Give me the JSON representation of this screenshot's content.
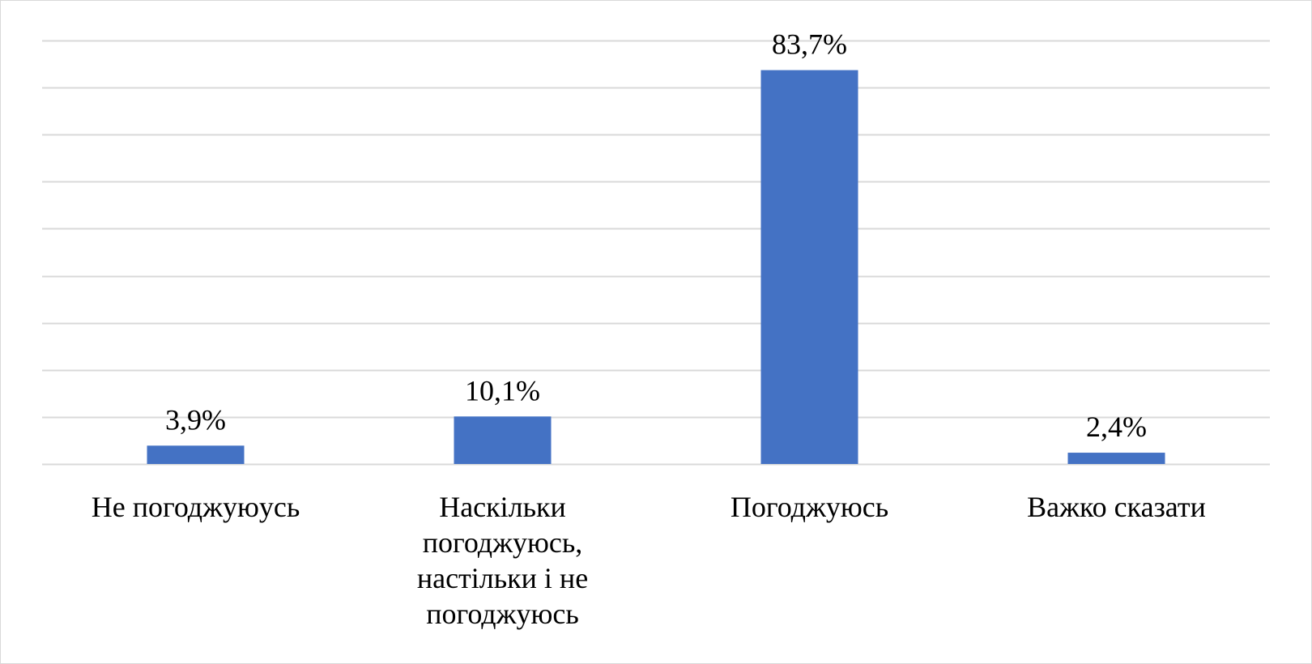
{
  "chart_data": {
    "type": "bar",
    "categories": [
      "Не погоджуюусь",
      "Наскільки\nпогоджуюсь,\nнастільки і не\nпогоджуюсь",
      "Погоджуюсь",
      "Важко сказати"
    ],
    "values": [
      3.9,
      10.1,
      83.7,
      2.4
    ],
    "data_labels": [
      "3,9%",
      "10,1%",
      "83,7%",
      "2,4%"
    ],
    "title": "",
    "xlabel": "",
    "ylabel": "",
    "ylim": [
      0,
      90
    ],
    "grid": true,
    "legend": "none",
    "colors": {
      "bar": "#4472c4",
      "grid": "#d9d9d9"
    }
  }
}
